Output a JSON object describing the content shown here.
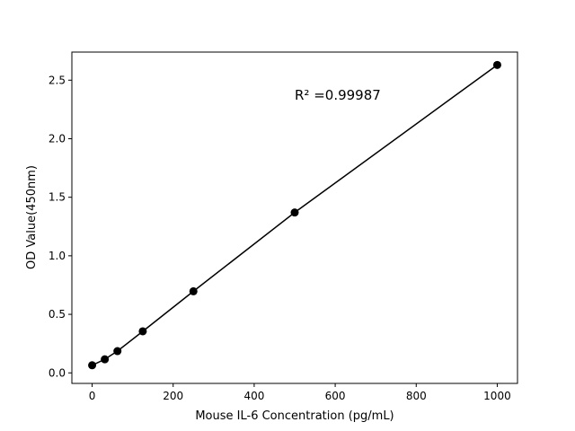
{
  "chart_data": {
    "type": "line",
    "title": "",
    "xlabel": "Mouse IL-6 Concentration (pg/mL)",
    "ylabel": "OD Value(450nm)",
    "xlim": [
      -50,
      1050
    ],
    "ylim": [
      -0.09,
      2.74
    ],
    "xticks": [
      0,
      200,
      400,
      600,
      800,
      1000
    ],
    "xtick_labels": [
      "0",
      "200",
      "400",
      "600",
      "800",
      "1000"
    ],
    "yticks": [
      0.0,
      0.5,
      1.0,
      1.5,
      2.0,
      2.5
    ],
    "ytick_labels": [
      "0.0",
      "0.5",
      "1.0",
      "1.5",
      "2.0",
      "2.5"
    ],
    "grid": false,
    "series": [
      {
        "x": [
          0,
          31.25,
          62.5,
          125,
          250,
          500,
          1000
        ],
        "y": [
          0.065,
          0.116,
          0.186,
          0.355,
          0.697,
          1.37,
          2.63
        ],
        "marker": "circle",
        "color": "#000000"
      }
    ],
    "annotation": {
      "text": "R² =0.99987",
      "x": 500,
      "y": 2.37
    }
  }
}
